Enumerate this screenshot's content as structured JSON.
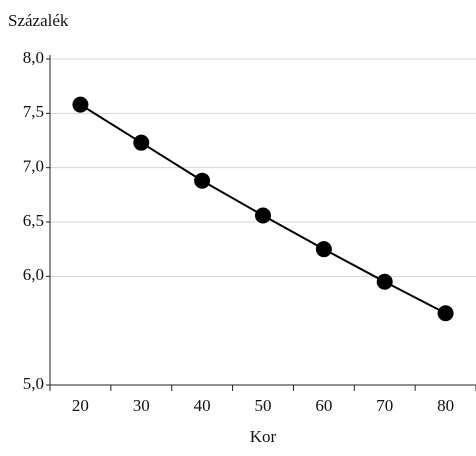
{
  "chart_data": {
    "type": "line",
    "y_axis_label": "Százalék",
    "x_axis_label": "Kor",
    "categories": [
      20,
      30,
      40,
      50,
      60,
      70,
      80
    ],
    "values": [
      7.58,
      7.23,
      6.88,
      6.56,
      6.25,
      5.95,
      5.66
    ],
    "color": "#000000",
    "ylim": [
      5,
      8
    ],
    "yticks": [
      {
        "value": 5,
        "label": "5,0"
      },
      {
        "value": 6,
        "label": "6,0"
      },
      {
        "value": 6.5,
        "label": "6,5"
      },
      {
        "value": 7,
        "label": "7,0"
      },
      {
        "value": 7.5,
        "label": "7,5"
      },
      {
        "value": 8,
        "label": "8,0"
      }
    ],
    "grid": true,
    "markers": true
  }
}
